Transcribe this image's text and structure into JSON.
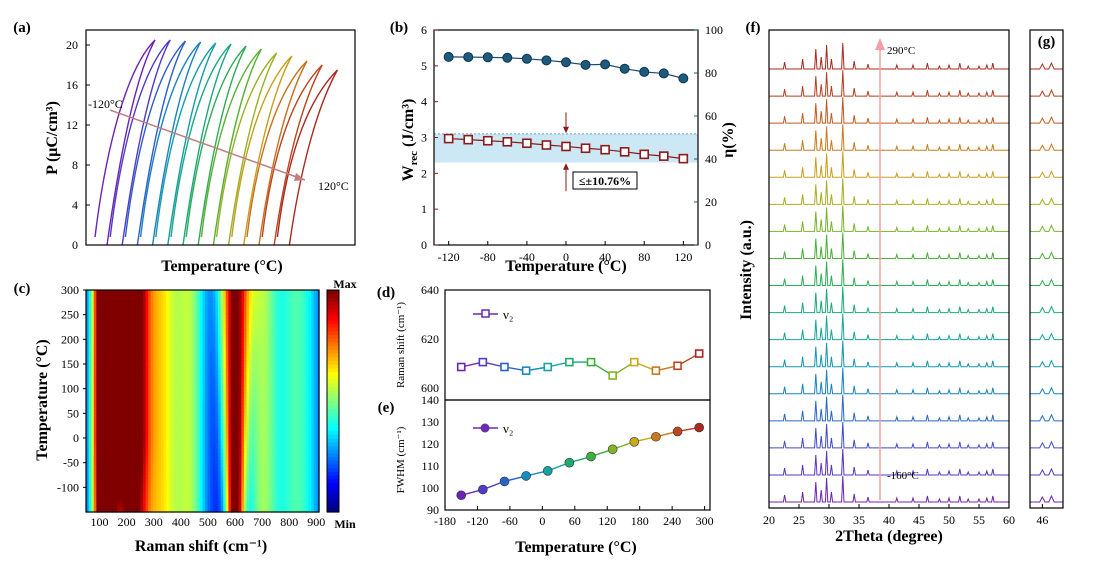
{
  "figure": {
    "a": {
      "label": "(a)",
      "ylabel_html": "P (μC/cm³)",
      "xlabel": "Temperature (°C)",
      "yticks": [
        0,
        4,
        8,
        12,
        16,
        20
      ],
      "ylim": [
        0,
        21.5
      ],
      "start_label": "-120°C",
      "end_label": "120°C",
      "series_count": 13
    },
    "b": {
      "label": "(b)",
      "xlabel": "Temperature (°C)",
      "ylabel_left": "W",
      "ylabel_left_sub": "rec",
      "ylabel_left_unit": " (J/cm³)",
      "ylabel_right": "η(%)",
      "annotation": "≤±10.76%",
      "xticks": [
        -120,
        -80,
        -40,
        0,
        40,
        80,
        120
      ],
      "yticks_left": [
        0,
        1,
        2,
        3,
        4,
        5,
        6
      ],
      "yticks_right": [
        0,
        20,
        40,
        60,
        80,
        100
      ]
    },
    "c": {
      "label": "(c)",
      "xlabel": "Raman shift (cm⁻¹)",
      "ylabel": "Temperature (°C)",
      "xticks": [
        100,
        200,
        300,
        400,
        500,
        600,
        700,
        800,
        900
      ],
      "yticks": [
        -100,
        -50,
        0,
        50,
        100,
        150,
        200,
        250,
        300
      ],
      "cbar_max": "Max",
      "cbar_min": "Min"
    },
    "d": {
      "label": "(d)",
      "ylabel": "Raman shift (cm⁻¹)",
      "legend": "ν₂",
      "yticks": [
        600,
        620,
        640
      ]
    },
    "e": {
      "label": "(e)",
      "ylabel": "FWHM (cm⁻¹)",
      "legend": "ν₂",
      "xlabel": "Temperature (°C)",
      "xticks": [
        -180,
        -120,
        -60,
        0,
        60,
        120,
        180,
        240,
        300
      ],
      "yticks": [
        90,
        100,
        110,
        120,
        130
      ]
    },
    "f": {
      "label": "(f)",
      "ylabel": "Intensity (a.u.)",
      "xlabel": "2Theta (degree)",
      "top_label": "290°C",
      "bottom_label": "-160°C",
      "xticks": [
        20,
        25,
        30,
        35,
        40,
        45,
        50,
        55,
        60
      ],
      "pattern_count": 17
    },
    "g": {
      "label": "(g)",
      "xticks": [
        46
      ]
    }
  },
  "chart_data": [
    {
      "type": "line",
      "panel": "b",
      "series": [
        {
          "name": "W_rec",
          "axis": "left",
          "x": [
            -120,
            -100,
            -80,
            -60,
            -40,
            -20,
            0,
            20,
            40,
            60,
            80,
            100,
            120
          ],
          "values": [
            2.97,
            2.94,
            2.91,
            2.88,
            2.84,
            2.79,
            2.75,
            2.7,
            2.66,
            2.6,
            2.53,
            2.48,
            2.41
          ]
        },
        {
          "name": "η",
          "axis": "right",
          "x": [
            -120,
            -100,
            -80,
            -60,
            -40,
            -20,
            0,
            20,
            40,
            60,
            80,
            100,
            120
          ],
          "values": [
            87.5,
            87.4,
            87.3,
            87.1,
            86.6,
            85.9,
            85.0,
            83.8,
            84.0,
            82.0,
            80.5,
            79.8,
            77.5
          ]
        }
      ],
      "xlim": [
        -135,
        135
      ],
      "ylim_left": [
        0,
        6
      ],
      "ylim_right": [
        0,
        100
      ]
    },
    {
      "type": "line",
      "panel": "d",
      "series": [
        {
          "name": "ν2",
          "x": [
            -150,
            -110,
            -70,
            -30,
            10,
            50,
            90,
            130,
            170,
            210,
            250,
            290
          ],
          "values": [
            608.5,
            610.5,
            608.5,
            607.0,
            608.5,
            610.5,
            610.5,
            605.0,
            610.5,
            607.0,
            609.0,
            614.0
          ]
        }
      ],
      "xlim": [
        -180,
        310
      ],
      "ylim": [
        595,
        640
      ]
    },
    {
      "type": "line",
      "panel": "e",
      "series": [
        {
          "name": "ν2",
          "x": [
            -150,
            -110,
            -70,
            -30,
            10,
            50,
            90,
            130,
            170,
            210,
            250,
            290
          ],
          "values": [
            96.7,
            99.3,
            103.0,
            105.5,
            107.8,
            111.5,
            114.3,
            117.6,
            121.0,
            123.3,
            125.7,
            127.5
          ]
        }
      ],
      "xlim": [
        -180,
        310
      ],
      "ylim": [
        90,
        140
      ]
    },
    {
      "type": "heatmap",
      "panel": "c",
      "xlim": [
        50,
        910
      ],
      "ylim": [
        -150,
        300
      ],
      "colorbar": [
        "Min",
        "Max"
      ]
    },
    {
      "type": "line",
      "panel": "a",
      "note": "13 hysteresis loops from -120°C to 120°C",
      "series_maxP": [
        20.5,
        20.5,
        20.4,
        20.3,
        20.2,
        20.1,
        19.9,
        19.6,
        19.2,
        18.9,
        18.4,
        18.0,
        17.5
      ]
    },
    {
      "type": "line",
      "panel": "f",
      "note": "17 XRD patterns from -160°C to 290°C",
      "peaks": [
        22.6,
        25.6,
        27.8,
        28.7,
        29.6,
        30.4,
        32.3,
        34.2,
        36.5,
        41.3,
        44.0,
        46.4,
        48.4,
        50.0,
        51.8,
        53.2,
        55.0,
        56.3,
        57.3
      ]
    }
  ]
}
